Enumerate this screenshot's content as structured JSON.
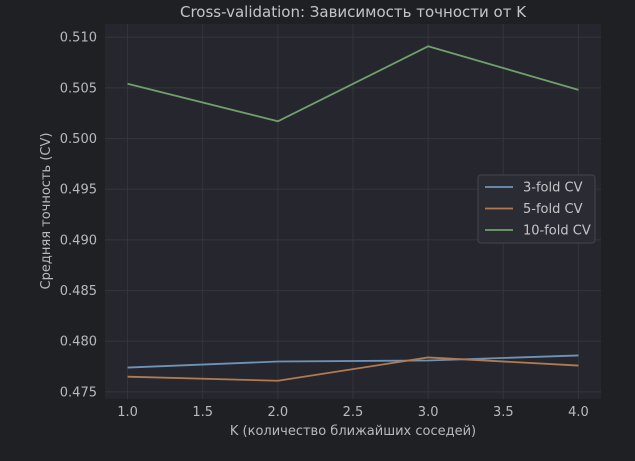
{
  "chart_data": {
    "type": "line",
    "title": "Cross-validation: Зависимость точности от K",
    "xlabel": "K (количество ближайших соседей)",
    "ylabel": "Средняя точность (CV)",
    "x": [
      1.0,
      2.0,
      3.0,
      4.0
    ],
    "xlim": [
      0.85,
      4.15
    ],
    "ylim": [
      0.4743,
      0.5113
    ],
    "xticks": [
      1.0,
      1.5,
      2.0,
      2.5,
      3.0,
      3.5,
      4.0
    ],
    "xtick_labels": [
      "1.0",
      "1.5",
      "2.0",
      "2.5",
      "3.0",
      "3.5",
      "4.0"
    ],
    "yticks": [
      0.475,
      0.48,
      0.485,
      0.49,
      0.495,
      0.5,
      0.505,
      0.51
    ],
    "ytick_labels": [
      "0.475",
      "0.480",
      "0.485",
      "0.490",
      "0.495",
      "0.500",
      "0.505",
      "0.510"
    ],
    "grid": true,
    "legend_position": "center-right",
    "series": [
      {
        "name": "3-fold CV",
        "values": [
          0.4774,
          0.478,
          0.4781,
          0.4786
        ],
        "color": "#6f93b5"
      },
      {
        "name": "5-fold CV",
        "values": [
          0.4765,
          0.4761,
          0.4784,
          0.4776
        ],
        "color": "#b07a52"
      },
      {
        "name": "10-fold CV",
        "values": [
          0.5054,
          0.5017,
          0.5091,
          0.5048
        ],
        "color": "#6fa06b"
      }
    ],
    "colors": {
      "figure_bg": "#1f2023",
      "plot_bg": "#26272e",
      "grid": "#34353b",
      "text": "#b8b9bd"
    }
  }
}
